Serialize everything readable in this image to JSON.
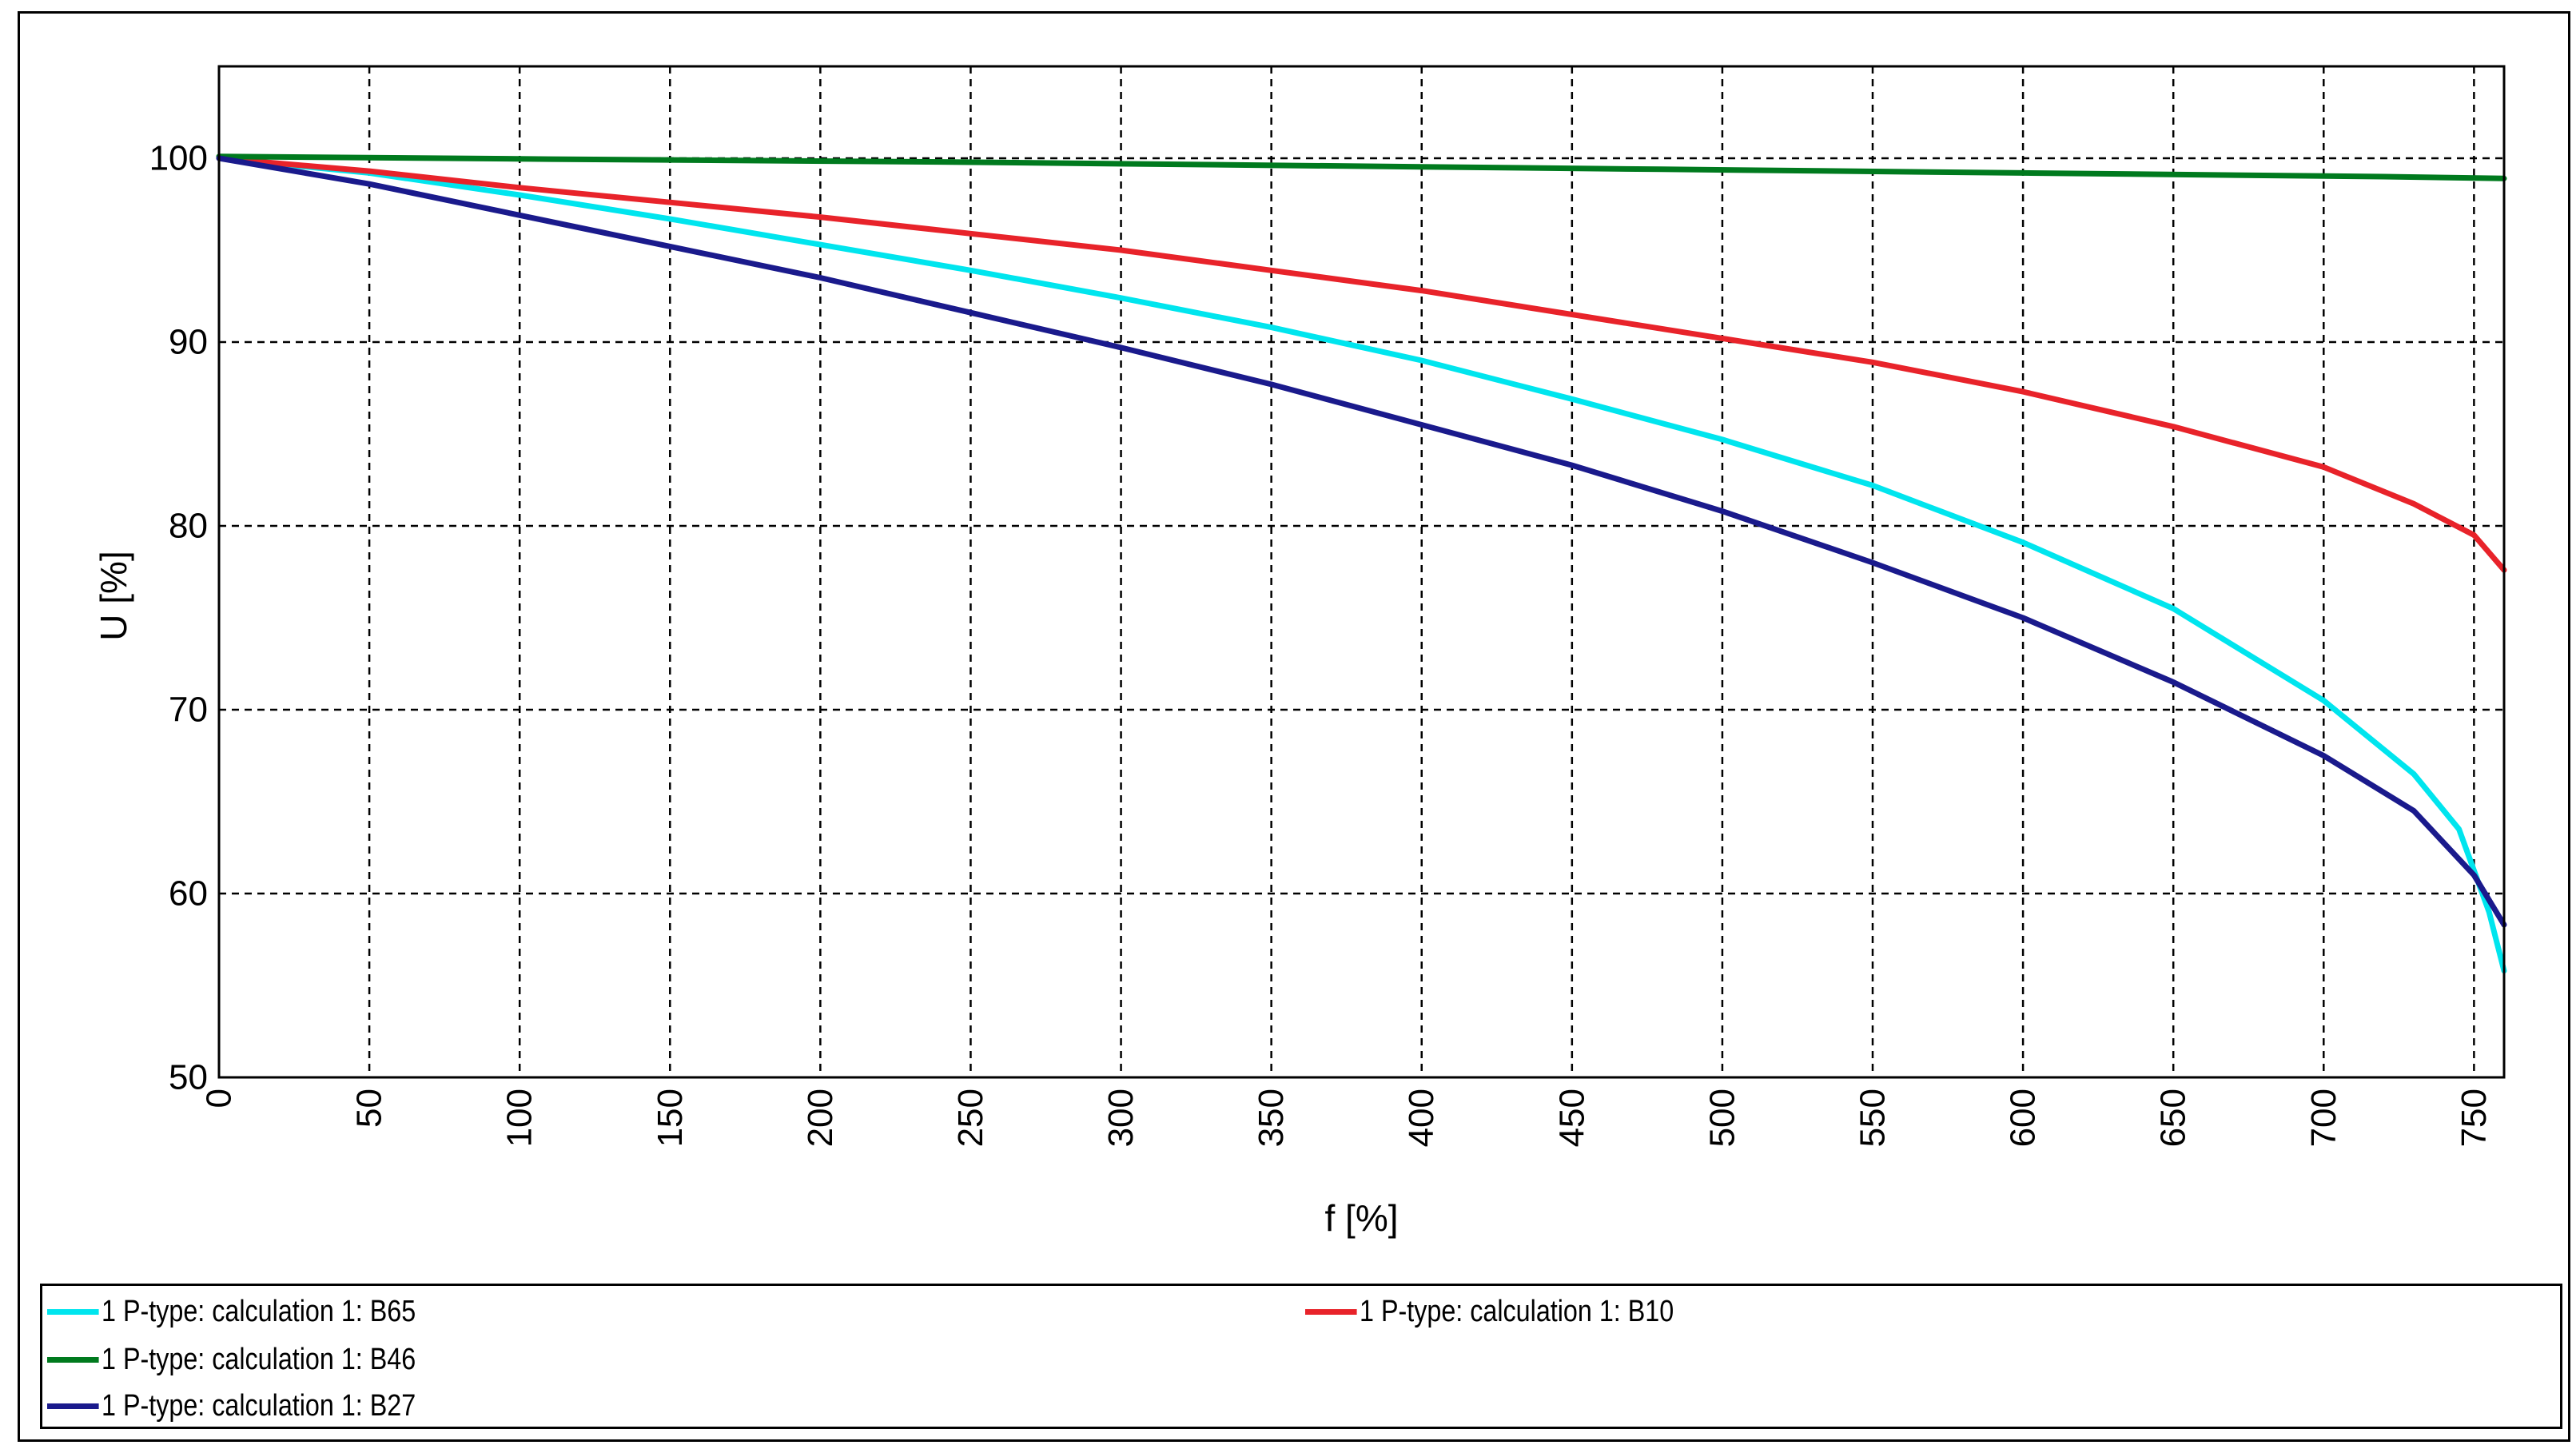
{
  "chart_data": {
    "type": "line",
    "xlabel": "f [%]",
    "ylabel": "U [%]",
    "xlim": [
      0,
      760
    ],
    "ylim": [
      50,
      105
    ],
    "xticks": [
      0,
      50,
      100,
      150,
      200,
      250,
      300,
      350,
      400,
      450,
      500,
      550,
      600,
      650,
      700,
      750
    ],
    "yticks": [
      50,
      60,
      70,
      80,
      90,
      100
    ],
    "grid": true,
    "legend_position": "bottom",
    "series": [
      {
        "name": "1 P-type: calculation 1: B65",
        "color": "#00e5ee",
        "x": [
          0,
          50,
          100,
          150,
          200,
          250,
          300,
          350,
          400,
          450,
          500,
          550,
          600,
          650,
          700,
          730,
          745,
          755,
          760
        ],
        "y": [
          100,
          99.2,
          98,
          96.7,
          95.3,
          93.9,
          92.4,
          90.8,
          89,
          86.9,
          84.7,
          82.2,
          79.1,
          75.5,
          70.5,
          66.5,
          63.5,
          59,
          55.8
        ]
      },
      {
        "name": "1 P-type: calculation 1: B10",
        "color": "#e8232a",
        "x": [
          0,
          50,
          100,
          150,
          200,
          250,
          300,
          350,
          400,
          450,
          500,
          550,
          600,
          650,
          700,
          730,
          750,
          760
        ],
        "y": [
          100,
          99.3,
          98.4,
          97.6,
          96.8,
          95.9,
          95,
          93.9,
          92.8,
          91.5,
          90.2,
          88.9,
          87.3,
          85.4,
          83.2,
          81.2,
          79.5,
          77.6
        ]
      },
      {
        "name": "1 P-type: calculation 1: B46",
        "color": "#007a1e",
        "x": [
          0,
          110,
          240,
          360,
          480,
          600,
          720,
          760
        ],
        "y": [
          100.1,
          99.95,
          99.8,
          99.6,
          99.4,
          99.2,
          99,
          98.9
        ]
      },
      {
        "name": "1 P-type: calculation 1: B27",
        "color": "#1a1a8c",
        "x": [
          0,
          50,
          100,
          150,
          200,
          250,
          300,
          350,
          400,
          450,
          500,
          550,
          600,
          650,
          700,
          730,
          750,
          760
        ],
        "y": [
          100,
          98.6,
          96.9,
          95.2,
          93.5,
          91.6,
          89.7,
          87.7,
          85.5,
          83.3,
          80.8,
          78,
          75,
          71.5,
          67.5,
          64.5,
          61,
          58.3
        ]
      }
    ]
  }
}
